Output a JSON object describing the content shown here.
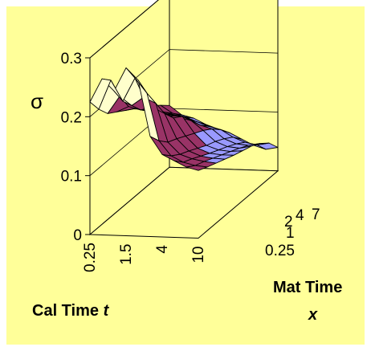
{
  "chart_data": {
    "type": "surface",
    "title": "",
    "zlabel": "σ",
    "xlabel": {
      "text": "Cal Time ",
      "var": "t"
    },
    "ylabel": {
      "text": "Mat Time",
      "var": "x"
    },
    "z_ticks": [
      "0",
      "0.1",
      "0.2",
      "0.3"
    ],
    "zlim": [
      0,
      0.3
    ],
    "x_tick_labels": [
      "0.25",
      "1.5",
      "4",
      "10"
    ],
    "y_tick_labels": [
      "0.25",
      "1",
      "2",
      "4",
      "7"
    ],
    "color_bands": [
      {
        "range": [
          0,
          0.1
        ],
        "color": "#9999ff"
      },
      {
        "range": [
          0.1,
          0.2
        ],
        "color": "#993366"
      },
      {
        "range": [
          0.2,
          0.3
        ],
        "color": "#ffffcc"
      }
    ],
    "grid": true,
    "background_color": "#ffff99",
    "z_values": [
      [
        0.225,
        0.265,
        0.245,
        0.285,
        0.265,
        0.17,
        0.14,
        0.13,
        0.12,
        0.115
      ],
      [
        0.2,
        0.25,
        0.215,
        0.255,
        0.23,
        0.15,
        0.125,
        0.115,
        0.11,
        0.108
      ],
      [
        0.18,
        0.21,
        0.195,
        0.21,
        0.2,
        0.135,
        0.115,
        0.108,
        0.104,
        0.102
      ],
      [
        0.17,
        0.18,
        0.175,
        0.18,
        0.17,
        0.128,
        0.108,
        0.1,
        0.097,
        0.096
      ],
      [
        0.16,
        0.165,
        0.16,
        0.16,
        0.15,
        0.12,
        0.1,
        0.092,
        0.09,
        0.09
      ],
      [
        0.15,
        0.15,
        0.145,
        0.14,
        0.14,
        0.112,
        0.092,
        0.085,
        0.083,
        0.085
      ],
      [
        0.14,
        0.135,
        0.13,
        0.125,
        0.12,
        0.104,
        0.086,
        0.078,
        0.076,
        0.08
      ],
      [
        0.13,
        0.12,
        0.115,
        0.11,
        0.1,
        0.094,
        0.078,
        0.07,
        0.068,
        0.072
      ],
      [
        0.118,
        0.105,
        0.1,
        0.092,
        0.085,
        0.08,
        0.068,
        0.06,
        0.056,
        0.06
      ],
      [
        0.105,
        0.09,
        0.085,
        0.075,
        0.068,
        0.062,
        0.052,
        0.042,
        0.036,
        0.04
      ]
    ]
  }
}
